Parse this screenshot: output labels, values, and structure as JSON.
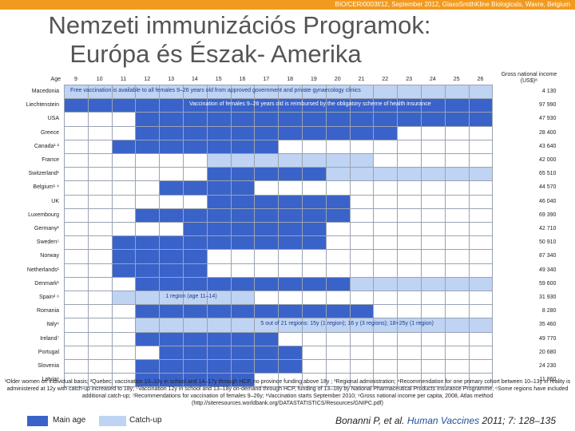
{
  "header": {
    "source": "BIO/CER/0003f/12, September 2012, GlaxoSmithKline Biologicals, Wavre, Belgium"
  },
  "title": {
    "line1": "Nemzeti immunizációs Programok:",
    "line2": "Európa és Észak- Amerika"
  },
  "table": {
    "age_label": "Age",
    "ages": [
      "9",
      "10",
      "11",
      "12",
      "13",
      "14",
      "15",
      "16",
      "17",
      "18",
      "19",
      "20",
      "21",
      "22",
      "23",
      "24",
      "25",
      "26"
    ],
    "gni_header": "Gross national income (US$)⁸",
    "colors": {
      "main": "#3a63c9",
      "catchup": "#bfd3f3",
      "empty": "#ffffff",
      "border": "#9aa3b3"
    },
    "rows": [
      {
        "country": "Macedonia",
        "gni": "4 130",
        "cells": "bbbbbbbbbbbbbbbbbb",
        "note": "Free vaccination is available to all females 9–26 years old from approved government and private gynaecology clinics",
        "note_start": 0
      },
      {
        "country": "Liechtenstein",
        "gni": "97 990",
        "cells": "mmmmmmmmmmmmmmmmmm",
        "note": "Vaccination of females 9–26 years old is reimbursed by the obligatory scheme of health insurance",
        "note_start": 5
      },
      {
        "country": "USA",
        "gni": "47 930",
        "cells": "...mmmmmmmmmmmmmmm",
        "note": "",
        "note_start": 0
      },
      {
        "country": "Greece",
        "gni": "28 400",
        "cells": "...mmmmmmmmmmm....",
        "note": "",
        "note_start": 0
      },
      {
        "country": "Canada¹ ²",
        "gni": "43 640",
        "cells": "..mmmmmmm.........",
        "note": "",
        "note_start": 0
      },
      {
        "country": "France",
        "gni": "42 000",
        "cells": "......bbbbbbb.....",
        "note": "",
        "note_start": 0
      },
      {
        "country": "Switzerland¹",
        "gni": "65 510",
        "cells": "......mmmmmbbbbbbb",
        "note": "",
        "note_start": 0
      },
      {
        "country": "Belgium¹ ⁴",
        "gni": "44 570",
        "cells": "....mmmm..........",
        "note": "",
        "note_start": 0
      },
      {
        "country": "UK",
        "gni": "46 040",
        "cells": "......mmmmmm......",
        "note": "",
        "note_start": 0
      },
      {
        "country": "Luxembourg",
        "gni": "69 390",
        "cells": "...mmmmmmmmm......",
        "note": "",
        "note_start": 0
      },
      {
        "country": "Germany¹",
        "gni": "42 710",
        "cells": ".....mmmmmm.......",
        "note": "",
        "note_start": 0
      },
      {
        "country": "Sweden⁵",
        "gni": "50 910",
        "cells": "..mmmmmmmmm.......",
        "note": "",
        "note_start": 0
      },
      {
        "country": "Norway",
        "gni": "87 340",
        "cells": "..mmmm............",
        "note": "",
        "note_start": 0
      },
      {
        "country": "Netherlands¹",
        "gni": "49 340",
        "cells": "..mmmm............",
        "note": "",
        "note_start": 0
      },
      {
        "country": "Denmark¹",
        "gni": "59 600",
        "cells": "...mmmmmmmmmbbbbbb",
        "note": "",
        "note_start": 0
      },
      {
        "country": "Spain² ⁶",
        "gni": "31 930",
        "cells": "..bbbbbb..........",
        "note": "1 region (age 11–14)",
        "note_start": 4
      },
      {
        "country": "Romania",
        "gni": "8 280",
        "cells": "...mmmmmmmmmm.....",
        "note": "",
        "note_start": 0
      },
      {
        "country": "Italy⁶",
        "gni": "35 460",
        "cells": "...bbbbbbbbbbbbbbb",
        "note": "5 out of 21 regions: 15y (1 region); 16 y (3 regions); 18+25y (1 region)",
        "note_start": 8
      },
      {
        "country": "Ireland⁷",
        "gni": "49 770",
        "cells": "...mmmmmm.........",
        "note": "",
        "note_start": 0
      },
      {
        "country": "Portugal",
        "gni": "20 680",
        "cells": "....mmmmmm........",
        "note": "",
        "note_start": 0
      },
      {
        "country": "Slovenia",
        "gni": "24 230",
        "cells": "...mmmmmmm........",
        "note": "",
        "note_start": 0
      },
      {
        "country": "Latvia⁹",
        "gni": "11 860",
        "cells": "...mmmmm..........",
        "note": "",
        "note_start": 0
      }
    ]
  },
  "footnote": "¹Older women on individual basis; ²Quebec: vaccination 10–13y in school and 14–17y through HCP, no province funding above 18y ; ³Regional administration; ⁴Recommendation for one primary cohort between 10–13y in reality is administered at 12y with catch-up increased to 18y; ⁵Vaccination 12y in school and 13–18y on-demand through HCP, funding of 13–18y by National Pharmaceutical Products Insurance Programme; ⁶Some regions have included additional catch-up; ⁷Recommendations for vaccination of females 9–26y; ⁸Vaccination starts September 2010; ⁹Gross national income per capita, 2008, Atlas method (http://siteresources.worldbank.org/DATASTATISTICS/Resources/GNIPC.pdf)",
  "legend": {
    "main": "Main age",
    "catchup": "Catch-up"
  },
  "citation": {
    "authors": "Bonanni P, et al.",
    "journal": "Human Vaccines",
    "ref": "2011; 7: 128–135"
  }
}
